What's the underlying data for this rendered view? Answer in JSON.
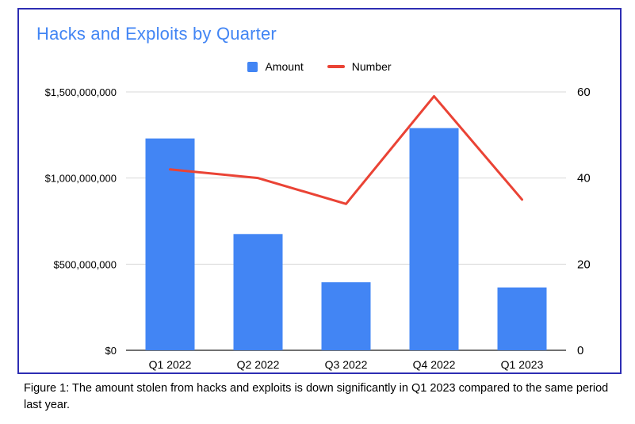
{
  "caption": "Figure 1: The amount stolen from hacks and exploits is down significantly in Q1 2023 compared to the same period last year.",
  "legend": [
    {
      "label": "Amount",
      "color": "#4285f4",
      "marker": "square"
    },
    {
      "label": "Number",
      "color": "#ea4335",
      "marker": "line"
    }
  ],
  "colors": {
    "bar": "#4285f4",
    "line": "#ea4335",
    "title": "#4285f4",
    "card_border": "#2d2db3",
    "gridline": "#dadada",
    "baseline": "#424242"
  },
  "chart_data": {
    "type": "bar",
    "subtype": "combo-bar-line",
    "title": "Hacks and Exploits by Quarter",
    "categories": [
      "Q1 2022",
      "Q2 2022",
      "Q3 2022",
      "Q4 2022",
      "Q1 2023"
    ],
    "series": [
      {
        "name": "Amount",
        "type": "bar",
        "axis": "left",
        "color": "#4285f4",
        "values": [
          1230000000,
          675000000,
          395000000,
          1290000000,
          365000000
        ]
      },
      {
        "name": "Number",
        "type": "line",
        "axis": "right",
        "color": "#ea4335",
        "values": [
          42,
          40,
          34,
          59,
          35
        ]
      }
    ],
    "left_axis": {
      "min": 0,
      "max": 1500000000,
      "tick_values": [
        0,
        500000000,
        1000000000,
        1500000000
      ],
      "tick_labels": [
        "$0",
        "$500,000,000",
        "$1,000,000,000",
        "$1,500,000,000"
      ]
    },
    "right_axis": {
      "min": 0,
      "max": 60,
      "tick_values": [
        0,
        20,
        40,
        60
      ],
      "tick_labels": [
        "0",
        "20",
        "40",
        "60"
      ]
    },
    "grid": true,
    "legend_position": "top"
  }
}
